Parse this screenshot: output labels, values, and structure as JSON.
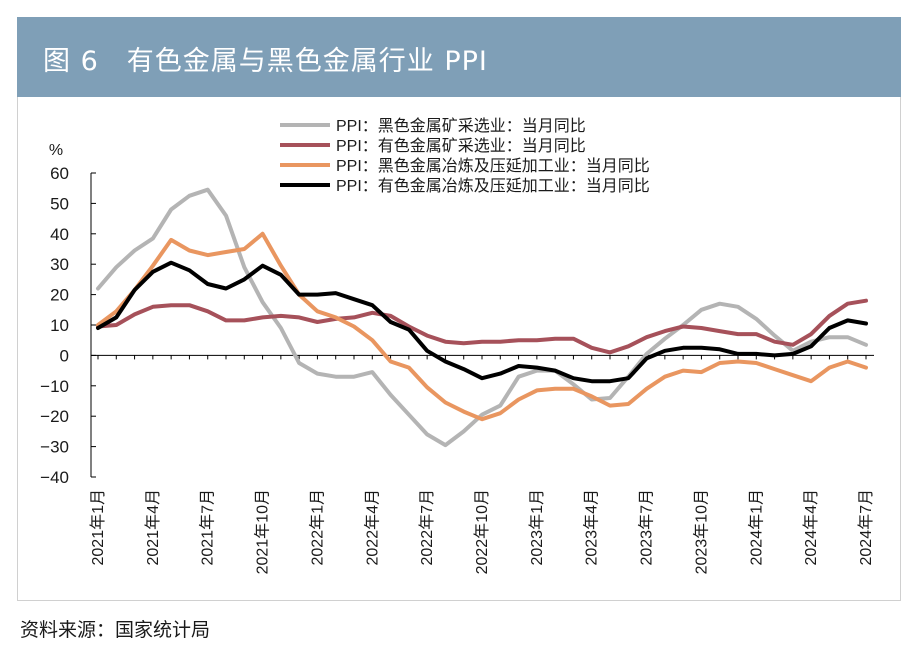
{
  "header": {
    "title": "图 6　有色金属与黑色金属行业 PPI"
  },
  "source": "资料来源：国家统计局",
  "chart_data": {
    "type": "line",
    "title": "图 6　有色金属与黑色金属行业 PPI",
    "ylabel": "%",
    "ylim": [
      -40,
      60
    ],
    "yticks": [
      60,
      50,
      40,
      30,
      20,
      10,
      0,
      -10,
      -20,
      -30,
      -40
    ],
    "ytick_labels": [
      "60",
      "50",
      "40",
      "30",
      "20",
      "10",
      "0",
      "−10",
      "−20",
      "−30",
      "−40"
    ],
    "grid": false,
    "legend_position": "top-center",
    "x": [
      "2021年1月",
      "2021年2月",
      "2021年3月",
      "2021年4月",
      "2021年5月",
      "2021年6月",
      "2021年7月",
      "2021年8月",
      "2021年9月",
      "2021年10月",
      "2021年11月",
      "2021年12月",
      "2022年1月",
      "2022年2月",
      "2022年3月",
      "2022年4月",
      "2022年5月",
      "2022年6月",
      "2022年7月",
      "2022年8月",
      "2022年9月",
      "2022年10月",
      "2022年11月",
      "2022年12月",
      "2023年1月",
      "2023年2月",
      "2023年3月",
      "2023年4月",
      "2023年5月",
      "2023年6月",
      "2023年7月",
      "2023年8月",
      "2023年9月",
      "2023年10月",
      "2023年11月",
      "2023年12月",
      "2024年1月",
      "2024年2月",
      "2024年3月",
      "2024年4月",
      "2024年5月",
      "2024年6月",
      "2024年7月"
    ],
    "xtick_labels": [
      "2021年1月",
      "2021年4月",
      "2021年7月",
      "2021年10月",
      "2022年1月",
      "2022年4月",
      "2022年7月",
      "2022年10月",
      "2023年1月",
      "2023年4月",
      "2023年7月",
      "2023年10月",
      "2024年1月",
      "2024年4月",
      "2024年7月"
    ],
    "series": [
      {
        "name": "PPI：黑色金属矿采选业：当月同比",
        "color": "#b4b4b4",
        "values": [
          22,
          29,
          34.5,
          38.5,
          48,
          52.5,
          54.5,
          46,
          29,
          17.5,
          9,
          -2.5,
          -6,
          -7,
          -7,
          -5.5,
          -13,
          -19.5,
          -26,
          -29.5,
          -25,
          -19.5,
          -16.5,
          -7,
          -5,
          -5,
          -9.5,
          -14.5,
          -14,
          -7,
          0.5,
          5.5,
          10,
          15,
          17,
          16,
          12,
          6.5,
          1.5,
          4.5,
          6,
          6,
          3.5
        ]
      },
      {
        "name": "PPI：有色金属矿采选业：当月同比",
        "color": "#a6515a",
        "values": [
          9.5,
          10,
          13.5,
          16,
          16.5,
          16.5,
          14.5,
          11.5,
          11.5,
          12.5,
          13,
          12.5,
          11,
          12,
          12.5,
          14,
          13,
          9.5,
          6.5,
          4.5,
          4,
          4.5,
          4.5,
          5,
          5,
          5.5,
          5.5,
          2.5,
          1,
          3,
          6,
          8,
          9.5,
          9,
          8,
          7,
          7,
          4.5,
          3.5,
          7,
          13,
          17,
          18
        ]
      },
      {
        "name": "PPI：黑色金属冶炼及压延加工业：当月同比",
        "color": "#e99660",
        "values": [
          10,
          14.5,
          21.5,
          29.5,
          38,
          34.5,
          33,
          34,
          35,
          40,
          29.5,
          20,
          14.5,
          12.5,
          9.5,
          5,
          -2,
          -4,
          -10.5,
          -15.5,
          -18.5,
          -21,
          -19,
          -14.5,
          -11.5,
          -11,
          -11,
          -13.5,
          -16.5,
          -16,
          -11,
          -7,
          -5,
          -5.5,
          -2.5,
          -2,
          -2.5,
          -4.5,
          -6.5,
          -8.5,
          -4,
          -2,
          -4
        ]
      },
      {
        "name": "PPI：有色金属冶炼及压延加工业：当月同比",
        "color": "#000000",
        "values": [
          9,
          12.5,
          21.5,
          27.5,
          30.5,
          28,
          23.5,
          22,
          25,
          29.5,
          26.5,
          20,
          20,
          20.5,
          18.5,
          16.5,
          11,
          8.5,
          1.5,
          -2,
          -4.5,
          -7.5,
          -6,
          -3.5,
          -4,
          -5,
          -7.5,
          -8.5,
          -8.5,
          -7.5,
          -1,
          1.5,
          2.5,
          2.5,
          2,
          0.5,
          0.5,
          0,
          0.5,
          3,
          9,
          11.5,
          10.5
        ]
      }
    ]
  }
}
